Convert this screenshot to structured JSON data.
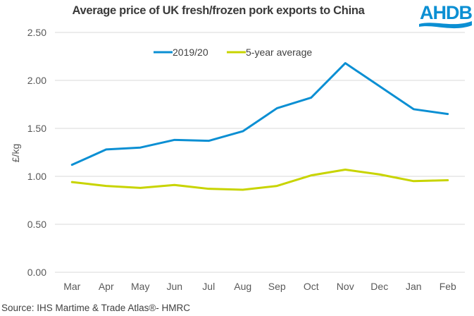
{
  "chart_data": {
    "type": "line",
    "title": "Average price of UK fresh/frozen pork exports to China",
    "xlabel": "",
    "ylabel": "£/kg",
    "ylim": [
      0,
      2.5
    ],
    "yticks": [
      "0.00",
      "0.50",
      "1.00",
      "1.50",
      "2.00",
      "2.50"
    ],
    "ytick_values": [
      0,
      0.5,
      1.0,
      1.5,
      2.0,
      2.5
    ],
    "categories": [
      "Mar",
      "Apr",
      "May",
      "Jun",
      "Jul",
      "Aug",
      "Sep",
      "Oct",
      "Nov",
      "Dec",
      "Jan",
      "Feb"
    ],
    "grid": true,
    "legend_position": "top-center",
    "series": [
      {
        "name": "2019/20",
        "color": "#0b8fd3",
        "values": [
          1.12,
          1.28,
          1.3,
          1.38,
          1.37,
          1.47,
          1.71,
          1.82,
          2.18,
          1.94,
          1.7,
          1.65
        ]
      },
      {
        "name": "5-year average",
        "color": "#c8d400",
        "values": [
          0.94,
          0.9,
          0.88,
          0.91,
          0.87,
          0.86,
          0.9,
          1.01,
          1.07,
          1.02,
          0.95,
          0.96
        ]
      }
    ]
  },
  "logo": {
    "text": "AHDB",
    "color": "#0b8fd3"
  },
  "source": "Source: IHS Martime & Trade Atlas®- HMRC"
}
